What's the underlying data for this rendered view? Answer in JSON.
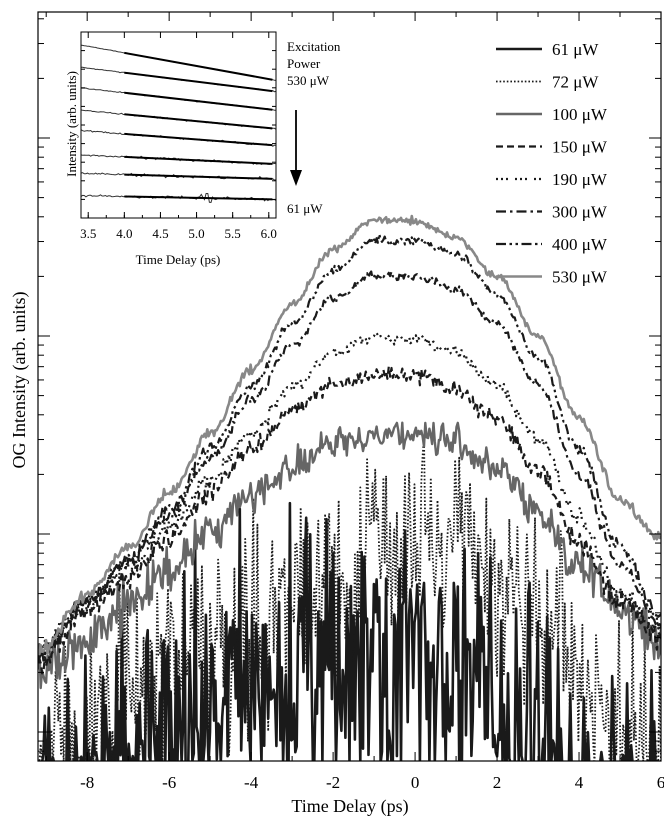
{
  "chart_data": [
    {
      "type": "line",
      "role": "main",
      "xlabel": "Time Delay (ps)",
      "ylabel": "OG Intensity (arb. units)",
      "xlim": [
        -9.2,
        6
      ],
      "yscale": "log",
      "xticks": [
        -8,
        -6,
        -4,
        -2,
        0,
        2,
        4,
        6
      ],
      "x_tick_labels": [
        "-8",
        "-6",
        "-4",
        "-2",
        "0",
        "2",
        "4",
        "6"
      ],
      "legend_position": "top-right",
      "series": [
        {
          "name": "61 μW",
          "style": "solid",
          "color": "#1a1a1a",
          "width": 2.6,
          "x": [
            -9.2,
            -8,
            -7,
            -6,
            -5,
            -4,
            -3,
            -2,
            -1,
            0,
            1,
            2,
            3,
            4,
            5,
            6
          ],
          "y": [
            0.03,
            0.04,
            0.06,
            0.09,
            0.13,
            0.16,
            0.18,
            0.22,
            0.26,
            0.26,
            0.22,
            0.12,
            0.07,
            0.04,
            0.03,
            0.03
          ],
          "noise": 0.5
        },
        {
          "name": "72 μW",
          "style": "dotted",
          "color": "#1a1a1a",
          "width": 1.8,
          "x": [
            -9.2,
            -8,
            -7,
            -6,
            -5,
            -4,
            -3,
            -2,
            -1,
            0,
            1,
            2,
            3,
            4,
            5,
            6
          ],
          "y": [
            0.04,
            0.1,
            0.16,
            0.22,
            0.3,
            0.36,
            0.45,
            0.6,
            0.8,
            0.9,
            0.82,
            0.6,
            0.35,
            0.2,
            0.1,
            0.06
          ],
          "noise": 0.38
        },
        {
          "name": "100 μW",
          "style": "solid",
          "color": "#666666",
          "width": 2.4,
          "x": [
            -9.2,
            -8,
            -7,
            -6,
            -5,
            -4,
            -3,
            -2,
            -1,
            0,
            1,
            2,
            3,
            4,
            5,
            6
          ],
          "y": [
            0.2,
            0.3,
            0.45,
            0.65,
            1.0,
            1.6,
            2.2,
            2.8,
            3.2,
            3.2,
            2.9,
            2.1,
            1.3,
            0.7,
            0.42,
            0.27
          ],
          "noise": 0.09
        },
        {
          "name": "150 μW",
          "style": "dashed",
          "color": "#1a1a1a",
          "width": 2.2,
          "x": [
            -9.2,
            -8,
            -7,
            -6,
            -5,
            -4,
            -3,
            -2,
            -1,
            0,
            1,
            2,
            3,
            4,
            5,
            6
          ],
          "y": [
            0.22,
            0.4,
            0.6,
            0.95,
            1.6,
            2.7,
            4.3,
            5.7,
            6.4,
            6.3,
            5.4,
            3.8,
            2.1,
            0.9,
            0.45,
            0.3
          ],
          "noise": 0.05
        },
        {
          "name": "190 μW",
          "style": "dot-dot-dash",
          "color": "#1a1a1a",
          "width": 2.2,
          "x": [
            -9.2,
            -8,
            -7,
            -6,
            -5,
            -4,
            -3,
            -2,
            -1,
            0,
            1,
            2,
            3,
            4,
            5,
            6
          ],
          "y": [
            0.25,
            0.45,
            0.68,
            1.1,
            1.9,
            3.2,
            5.5,
            8.2,
            9.9,
            9.6,
            8.3,
            5.6,
            3.0,
            1.2,
            0.5,
            0.33
          ],
          "noise": 0.04
        },
        {
          "name": "300 μW",
          "style": "dash-dot",
          "color": "#1a1a1a",
          "width": 2.2,
          "x": [
            -9.2,
            -8,
            -7,
            -6,
            -5,
            -4,
            -3,
            -2,
            -1,
            0,
            1,
            2,
            3,
            4,
            5,
            6
          ],
          "y": [
            0.25,
            0.45,
            0.72,
            1.25,
            2.4,
            4.7,
            9.0,
            15.5,
            20.5,
            20.2,
            17.2,
            11.5,
            5.7,
            2.0,
            0.7,
            0.35
          ],
          "noise": 0.03
        },
        {
          "name": "400 μW",
          "style": "dash-dot-dot",
          "color": "#1a1a1a",
          "width": 2.2,
          "x": [
            -9.2,
            -8,
            -7,
            -6,
            -5,
            -4,
            -3,
            -2,
            -1,
            0,
            1,
            2,
            3,
            4,
            5,
            6
          ],
          "y": [
            0.25,
            0.46,
            0.75,
            1.35,
            2.7,
            5.6,
            11.5,
            21.5,
            30.5,
            30.2,
            26.0,
            16.0,
            7.8,
            2.7,
            0.85,
            0.38
          ],
          "noise": 0.03
        },
        {
          "name": "530 μW",
          "style": "solid",
          "color": "#888888",
          "width": 2.6,
          "x": [
            -9.2,
            -8,
            -7,
            -6,
            -5,
            -4,
            -3,
            -2,
            -1,
            0,
            1,
            2,
            3,
            4,
            5,
            6
          ],
          "y": [
            0.25,
            0.5,
            0.85,
            1.6,
            3.2,
            6.8,
            14.5,
            27.5,
            38.5,
            38.0,
            31.5,
            20.0,
            10.0,
            3.8,
            1.5,
            0.95
          ],
          "noise": 0.025
        }
      ]
    },
    {
      "type": "line",
      "role": "inset",
      "xlabel": "Time Delay (ps)",
      "ylabel": "Intensity (arb. units)",
      "xlim": [
        3.4,
        6.1
      ],
      "xticks": [
        3.5,
        4.0,
        4.5,
        5.0,
        5.5,
        6.0
      ],
      "x_tick_labels": [
        "3.5",
        "4.0",
        "4.5",
        "5.0",
        "5.5",
        "6.0"
      ],
      "series": [
        {
          "level": 0,
          "start": 0.07,
          "end": 0.26
        },
        {
          "level": 1,
          "start": 0.19,
          "end": 0.32
        },
        {
          "level": 2,
          "start": 0.3,
          "end": 0.42
        },
        {
          "level": 3,
          "start": 0.42,
          "end": 0.52
        },
        {
          "level": 4,
          "start": 0.53,
          "end": 0.61
        },
        {
          "level": 5,
          "start": 0.66,
          "end": 0.71
        },
        {
          "level": 6,
          "start": 0.76,
          "end": 0.79
        },
        {
          "level": 7,
          "start": 0.88,
          "end": 0.9
        }
      ],
      "annotations": {
        "top_label_lines": [
          "Excitation",
          "Power",
          "530 μW"
        ],
        "bottom_label": "61 μW"
      }
    }
  ]
}
